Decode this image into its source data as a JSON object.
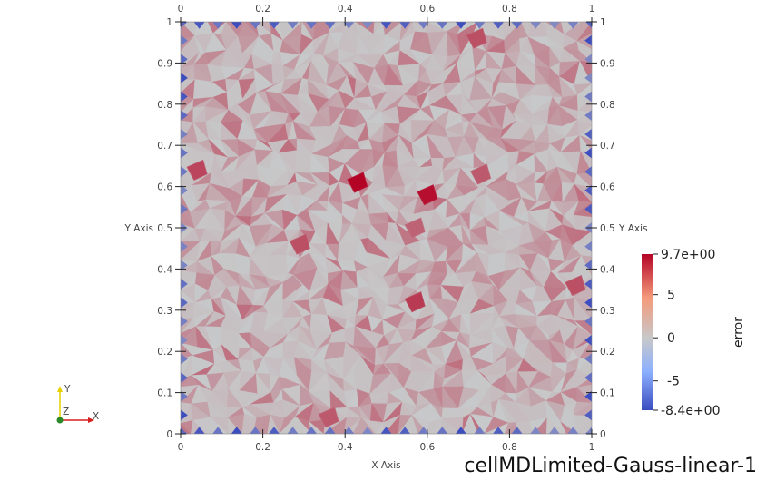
{
  "chart_data": {
    "type": "heatmap",
    "title": "cellMDLimited-Gauss-linear-1",
    "xlabel": "X Axis",
    "ylabel": "Y Axis",
    "xlim": [
      0,
      1
    ],
    "ylim": [
      0,
      1
    ],
    "x_ticks": [
      "0",
      "0.2",
      "0.4",
      "0.6",
      "0.8",
      "1"
    ],
    "y_ticks": [
      "0",
      "0.1",
      "0.2",
      "0.3",
      "0.4",
      "0.5",
      "0.6",
      "0.7",
      "0.8",
      "0.9",
      "1"
    ],
    "colorbar": {
      "label": "error",
      "max_label": "9.7e+00",
      "min_label": "-8.4e+00",
      "tick_labels": [
        "5",
        "0",
        "-5"
      ],
      "tick_values": [
        5,
        0,
        -5
      ],
      "range": [
        -8.4,
        9.7
      ],
      "colors": [
        "#3b4cc0",
        "#c7c8c9",
        "#b40426"
      ]
    },
    "hot_cells": [
      {
        "x": 0.43,
        "y": 0.61,
        "value": 9.7
      },
      {
        "x": 0.6,
        "y": 0.58,
        "value": 9.2
      },
      {
        "x": 0.04,
        "y": 0.64,
        "value": 6.5
      },
      {
        "x": 0.29,
        "y": 0.46,
        "value": 6.0
      },
      {
        "x": 0.57,
        "y": 0.32,
        "value": 7.0
      },
      {
        "x": 0.73,
        "y": 0.63,
        "value": 5.5
      },
      {
        "x": 0.57,
        "y": 0.5,
        "value": 5.0
      },
      {
        "x": 0.96,
        "y": 0.36,
        "value": 6.0
      },
      {
        "x": 0.72,
        "y": 0.96,
        "value": 6.0
      },
      {
        "x": 0.36,
        "y": 0.04,
        "value": 5.5
      }
    ],
    "boundary_min": -8.4,
    "background_value": 0.5
  },
  "axes_triad": {
    "x_label": "X",
    "y_label": "Y",
    "z_label": "Z"
  }
}
